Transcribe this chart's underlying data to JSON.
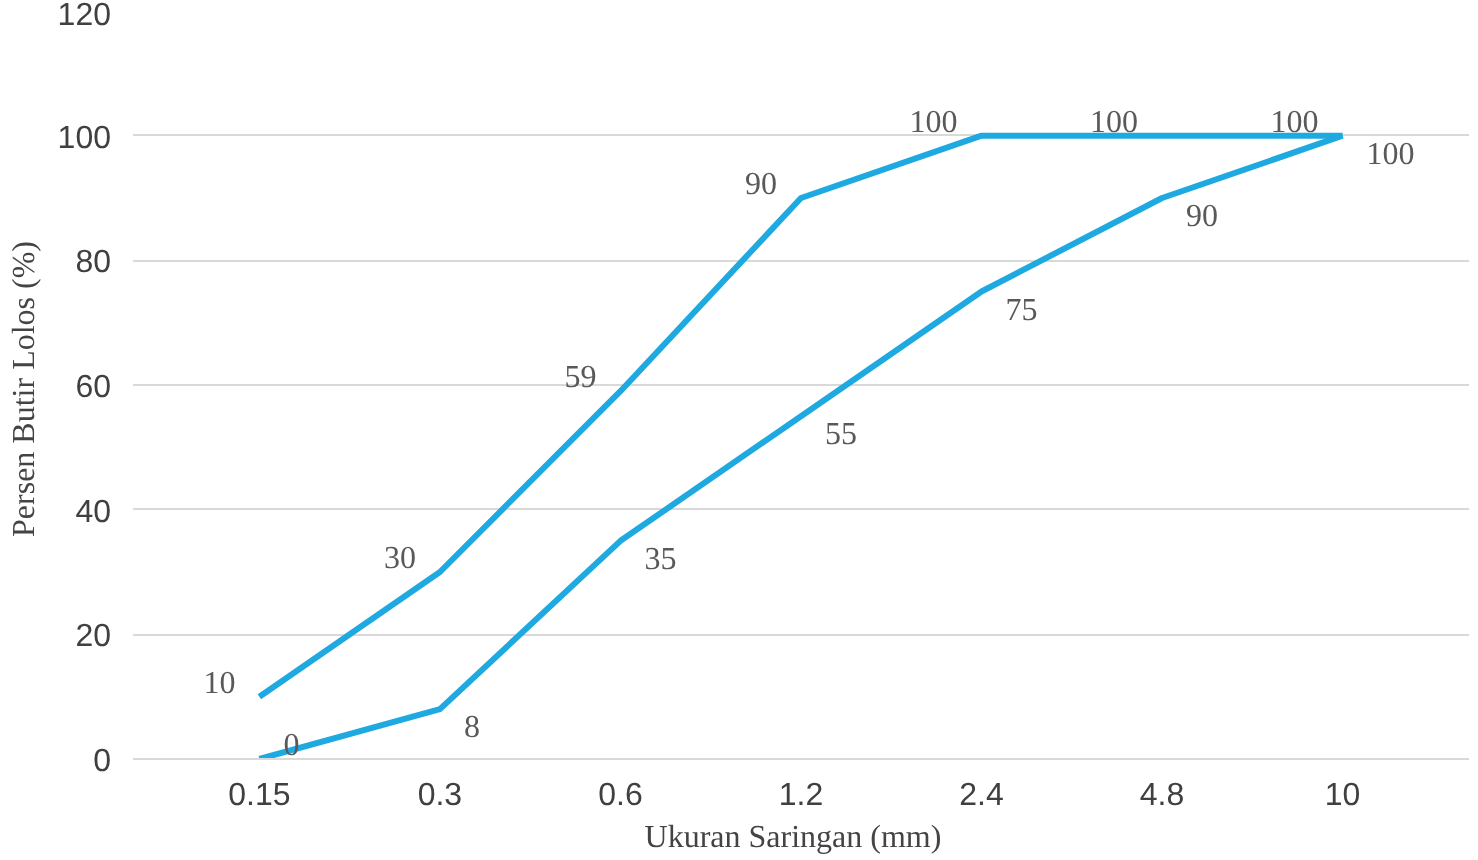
{
  "chart_data": {
    "type": "line",
    "xlabel": "Ukuran Saringan   (mm)",
    "ylabel": "Persen Butir Lolos  (%)",
    "categories": [
      "0.15",
      "0.3",
      "0.6",
      "1.2",
      "2.4",
      "4.8",
      "10"
    ],
    "series": [
      {
        "color": "#1fa9e1",
        "values": [
          10,
          30,
          59,
          90,
          100,
          100,
          100
        ]
      },
      {
        "color": "#1fa9e1",
        "values": [
          0,
          8,
          35,
          55,
          75,
          90,
          100
        ]
      }
    ],
    "ylim": [
      0,
      120
    ],
    "yticks": [
      0,
      20,
      40,
      60,
      80,
      100,
      120
    ],
    "grid": "y",
    "marker": "none",
    "line_style": "solid",
    "data_labels": true
  }
}
